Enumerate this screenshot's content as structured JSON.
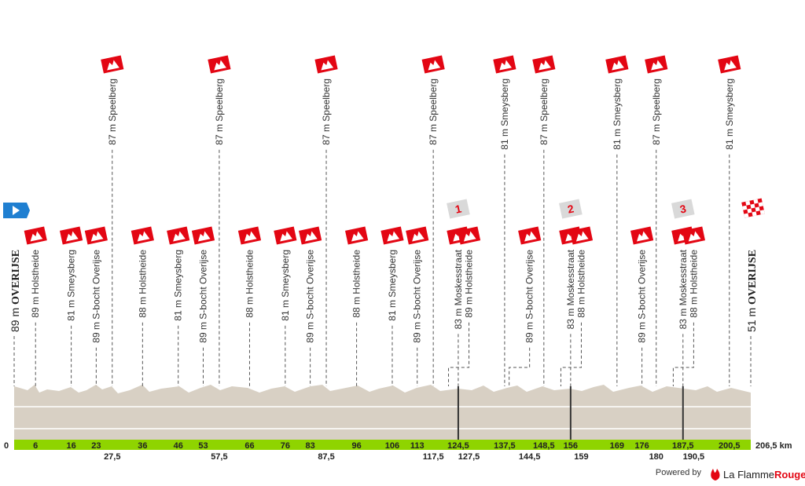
{
  "start": {
    "km": 0,
    "elevation": "89 m",
    "name": "OVERIJSE"
  },
  "finish": {
    "km": {
      "value": 206.5,
      "label": "206,5 km"
    },
    "elevation": "51 m",
    "name": "OVERIJSE"
  },
  "waypoints": [
    {
      "km": 6,
      "name": "89 m Holstheide"
    },
    {
      "km": 16,
      "name": "81 m Smeysberg"
    },
    {
      "km": 23,
      "name": "89 m S-bocht Overijse"
    },
    {
      "km": {
        "value": 27.5,
        "label": "27,5"
      },
      "name": "87 m Speelberg",
      "upper": true,
      "row": 2
    },
    {
      "km": 36,
      "name": "88 m Holstheide"
    },
    {
      "km": 46,
      "name": "81 m Smeysberg"
    },
    {
      "km": 53,
      "name": "89 m S-bocht Overijse"
    },
    {
      "km": {
        "value": 57.5,
        "label": "57,5"
      },
      "name": "87 m Speelberg",
      "upper": true,
      "row": 2
    },
    {
      "km": 66,
      "name": "88 m Holstheide"
    },
    {
      "km": 76,
      "name": "81 m Smeysberg"
    },
    {
      "km": 83,
      "name": "89 m S-bocht Overijse"
    },
    {
      "km": {
        "value": 87.5,
        "label": "87,5"
      },
      "name": "87 m Speelberg",
      "upper": true,
      "row": 2
    },
    {
      "km": 96,
      "name": "88 m Holstheide"
    },
    {
      "km": 106,
      "name": "81 m Smeysberg"
    },
    {
      "km": 113,
      "name": "89 m S-bocht Overijse"
    },
    {
      "km": {
        "value": 117.5,
        "label": "117,5"
      },
      "name": "87 m Speelberg",
      "upper": true,
      "row": 2
    },
    {
      "km": {
        "value": 124.5,
        "label": "124,5"
      },
      "name": "83 m Moskesstraat",
      "sprint": "1"
    },
    {
      "km": {
        "value": 127.5,
        "label": "127,5"
      },
      "name": "89 m Holstheide",
      "row": 2
    },
    {
      "km": {
        "value": 137.5,
        "label": "137,5"
      },
      "name": "81 m Smeysberg",
      "upper": true
    },
    {
      "km": {
        "value": 144.5,
        "label": "144,5"
      },
      "name": "89 m S-bocht Overijse",
      "row": 2
    },
    {
      "km": {
        "value": 148.5,
        "label": "148,5"
      },
      "name": "87 m Speelberg",
      "upper": true
    },
    {
      "km": 156,
      "name": "83 m Moskesstraat",
      "sprint": "2"
    },
    {
      "km": 159,
      "name": "88 m Holstheide",
      "row": 2
    },
    {
      "km": 169,
      "name": "81 m Smeysberg",
      "upper": true
    },
    {
      "km": 176,
      "name": "89 m S-bocht Overijse"
    },
    {
      "km": 180,
      "name": "87 m Speelberg",
      "upper": true,
      "row": 2
    },
    {
      "km": {
        "value": 187.5,
        "label": "187,5"
      },
      "name": "83 m Moskesstraat",
      "sprint": "3"
    },
    {
      "km": {
        "value": 190.5,
        "label": "190,5"
      },
      "name": "88 m Holstheide",
      "row": 2
    },
    {
      "km": {
        "value": 200.5,
        "label": "200,5"
      },
      "name": "81 m Smeysberg",
      "upper": true
    }
  ],
  "footer": {
    "powered": "Powered by",
    "brand": "La Flamme",
    "brand_accent": "Rouge"
  }
}
